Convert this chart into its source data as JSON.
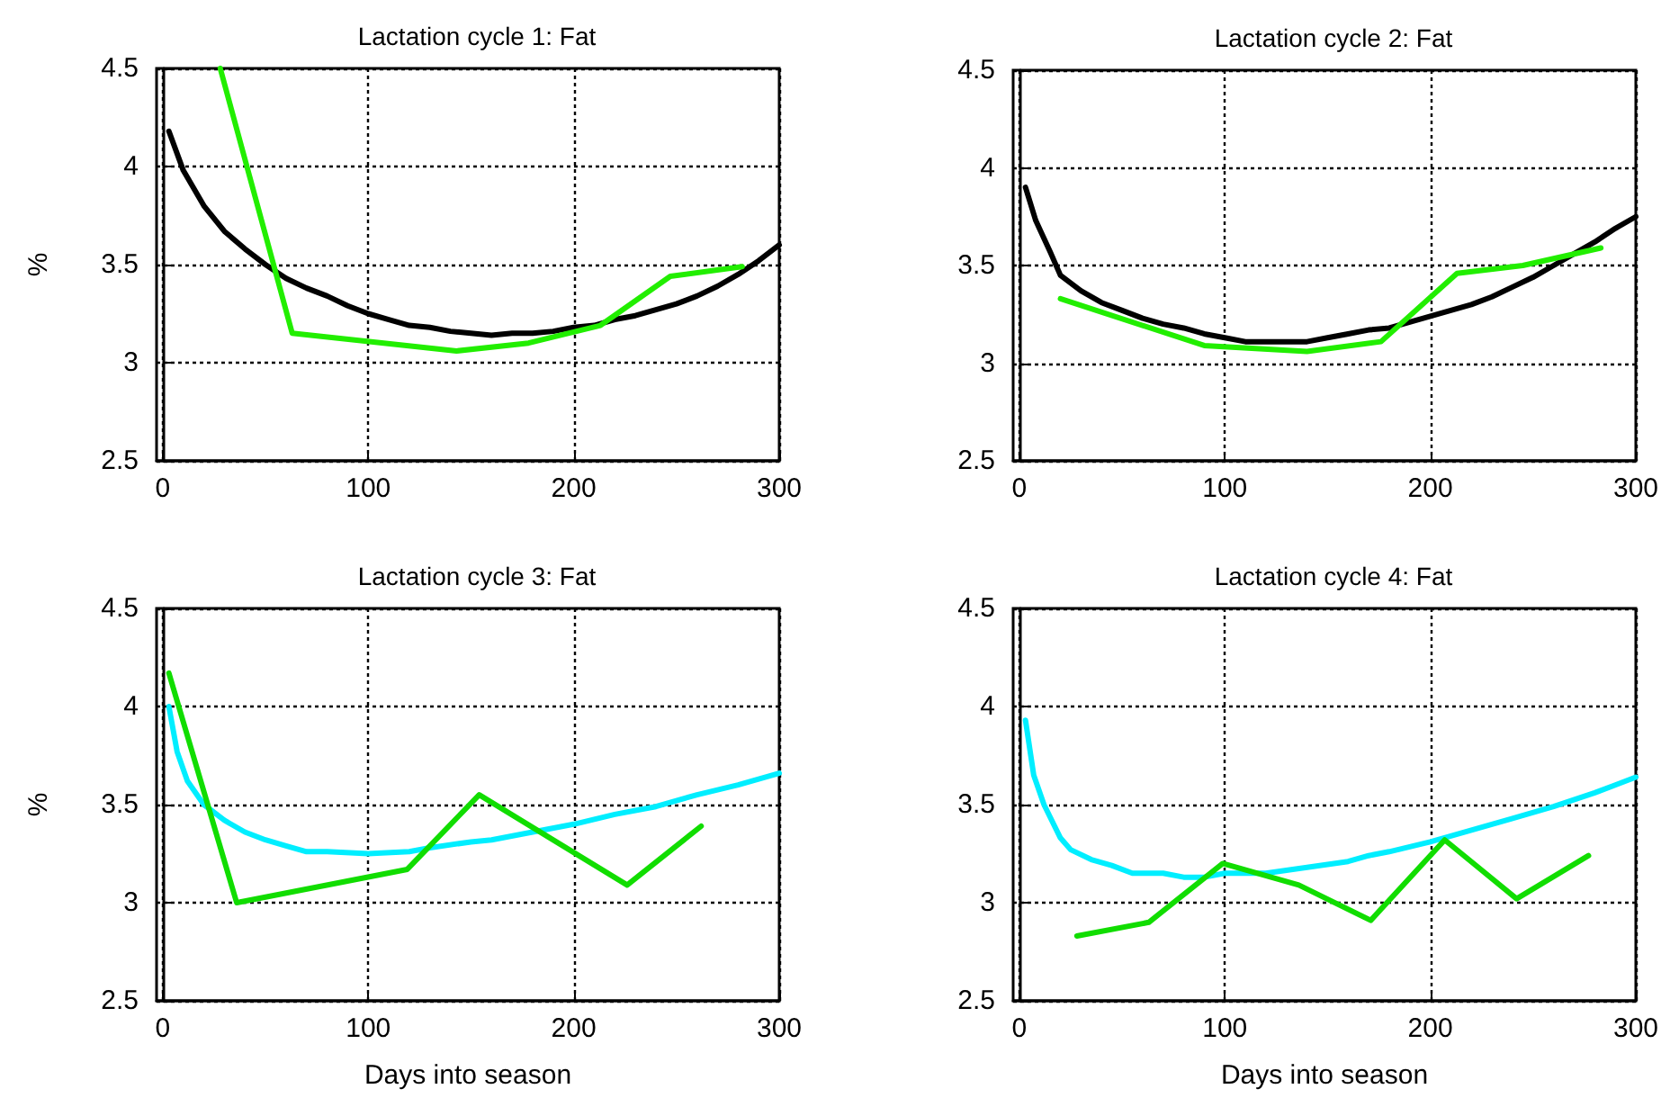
{
  "chart_data": [
    {
      "type": "line",
      "title": "Lactation cycle 1: Fat",
      "ylabel": "%",
      "xlim": [
        -3,
        300
      ],
      "xticks": [
        0,
        100,
        200,
        300
      ],
      "ylim": [
        2.5,
        4.5
      ],
      "yticks": [
        2.5,
        3,
        3.5,
        4,
        4.5
      ],
      "grid": true,
      "marker": "none",
      "line_style": "solid",
      "series": [
        {
          "color": "#000000",
          "x": [
            3,
            10,
            20,
            30,
            40,
            50,
            60,
            70,
            80,
            90,
            100,
            110,
            120,
            130,
            140,
            150,
            160,
            170,
            180,
            190,
            200,
            210,
            220,
            230,
            240,
            250,
            260,
            270,
            280,
            290,
            300
          ],
          "values": [
            4.18,
            3.98,
            3.8,
            3.67,
            3.58,
            3.5,
            3.43,
            3.38,
            3.34,
            3.29,
            3.25,
            3.22,
            3.19,
            3.18,
            3.16,
            3.15,
            3.14,
            3.15,
            3.15,
            3.16,
            3.18,
            3.19,
            3.22,
            3.24,
            3.27,
            3.3,
            3.34,
            3.39,
            3.45,
            3.52,
            3.6
          ]
        },
        {
          "color": "#22ee00",
          "x": [
            28,
            63,
            143,
            178,
            213,
            247,
            282
          ],
          "values": [
            4.5,
            3.15,
            3.06,
            3.1,
            3.19,
            3.44,
            3.49
          ]
        }
      ]
    },
    {
      "type": "line",
      "title": "Lactation cycle 2: Fat",
      "xlim": [
        -3,
        300
      ],
      "xticks": [
        0,
        100,
        200,
        300
      ],
      "ylim": [
        2.5,
        4.5
      ],
      "yticks": [
        2.5,
        3,
        3.5,
        4,
        4.5
      ],
      "grid": true,
      "marker": "none",
      "line_style": "solid",
      "series": [
        {
          "color": "#000000",
          "x": [
            3,
            8,
            15,
            20,
            30,
            40,
            50,
            60,
            70,
            80,
            90,
            100,
            110,
            120,
            130,
            140,
            150,
            160,
            170,
            180,
            190,
            200,
            210,
            220,
            230,
            240,
            250,
            260,
            270,
            280,
            290,
            300
          ],
          "values": [
            3.9,
            3.73,
            3.57,
            3.45,
            3.37,
            3.31,
            3.27,
            3.23,
            3.2,
            3.18,
            3.15,
            3.13,
            3.11,
            3.11,
            3.11,
            3.11,
            3.13,
            3.15,
            3.17,
            3.18,
            3.21,
            3.24,
            3.27,
            3.3,
            3.34,
            3.39,
            3.44,
            3.5,
            3.56,
            3.62,
            3.69,
            3.75
          ]
        },
        {
          "color": "#22ee00",
          "x": [
            20,
            90,
            140,
            176,
            213,
            245,
            283
          ],
          "values": [
            3.33,
            3.09,
            3.06,
            3.11,
            3.46,
            3.5,
            3.59
          ]
        }
      ]
    },
    {
      "type": "line",
      "title": "Lactation cycle 3: Fat",
      "xlabel": "Days into season",
      "ylabel": "%",
      "xlim": [
        -3,
        300
      ],
      "xticks": [
        0,
        100,
        200,
        300
      ],
      "ylim": [
        2.5,
        4.5
      ],
      "yticks": [
        2.5,
        3,
        3.5,
        4,
        4.5
      ],
      "grid": true,
      "marker": "none",
      "line_style": "solid",
      "series": [
        {
          "color": "#00eeff",
          "x": [
            3,
            7,
            12,
            20,
            30,
            40,
            50,
            60,
            70,
            80,
            100,
            120,
            130,
            150,
            160,
            180,
            200,
            220,
            240,
            260,
            280,
            300
          ],
          "values": [
            4.0,
            3.77,
            3.62,
            3.5,
            3.42,
            3.36,
            3.32,
            3.29,
            3.26,
            3.26,
            3.25,
            3.26,
            3.28,
            3.31,
            3.32,
            3.36,
            3.4,
            3.45,
            3.49,
            3.55,
            3.6,
            3.66
          ]
        },
        {
          "color": "#11dd00",
          "x": [
            3,
            36,
            119,
            154,
            226,
            262
          ],
          "values": [
            4.17,
            3.0,
            3.17,
            3.55,
            3.09,
            3.39
          ]
        }
      ]
    },
    {
      "type": "line",
      "title": "Lactation cycle 4: Fat",
      "xlabel": "Days into season",
      "xlim": [
        -3,
        300
      ],
      "xticks": [
        0,
        100,
        200,
        300
      ],
      "ylim": [
        2.5,
        4.5
      ],
      "yticks": [
        2.5,
        3,
        3.5,
        4,
        4.5
      ],
      "grid": true,
      "marker": "none",
      "line_style": "solid",
      "series": [
        {
          "color": "#00eeff",
          "x": [
            3,
            7,
            12,
            20,
            25,
            35,
            45,
            55,
            70,
            80,
            90,
            100,
            120,
            140,
            160,
            170,
            180,
            200,
            210,
            220,
            240,
            260,
            280,
            290,
            300
          ],
          "values": [
            3.93,
            3.65,
            3.5,
            3.33,
            3.27,
            3.22,
            3.19,
            3.15,
            3.15,
            3.13,
            3.13,
            3.15,
            3.15,
            3.18,
            3.21,
            3.24,
            3.26,
            3.31,
            3.34,
            3.37,
            3.43,
            3.49,
            3.56,
            3.6,
            3.64
          ]
        },
        {
          "color": "#11dd00",
          "x": [
            28,
            63,
            99,
            136,
            171,
            207,
            242,
            277
          ],
          "values": [
            2.83,
            2.9,
            3.2,
            3.09,
            2.91,
            3.32,
            3.02,
            3.24
          ]
        }
      ]
    }
  ]
}
